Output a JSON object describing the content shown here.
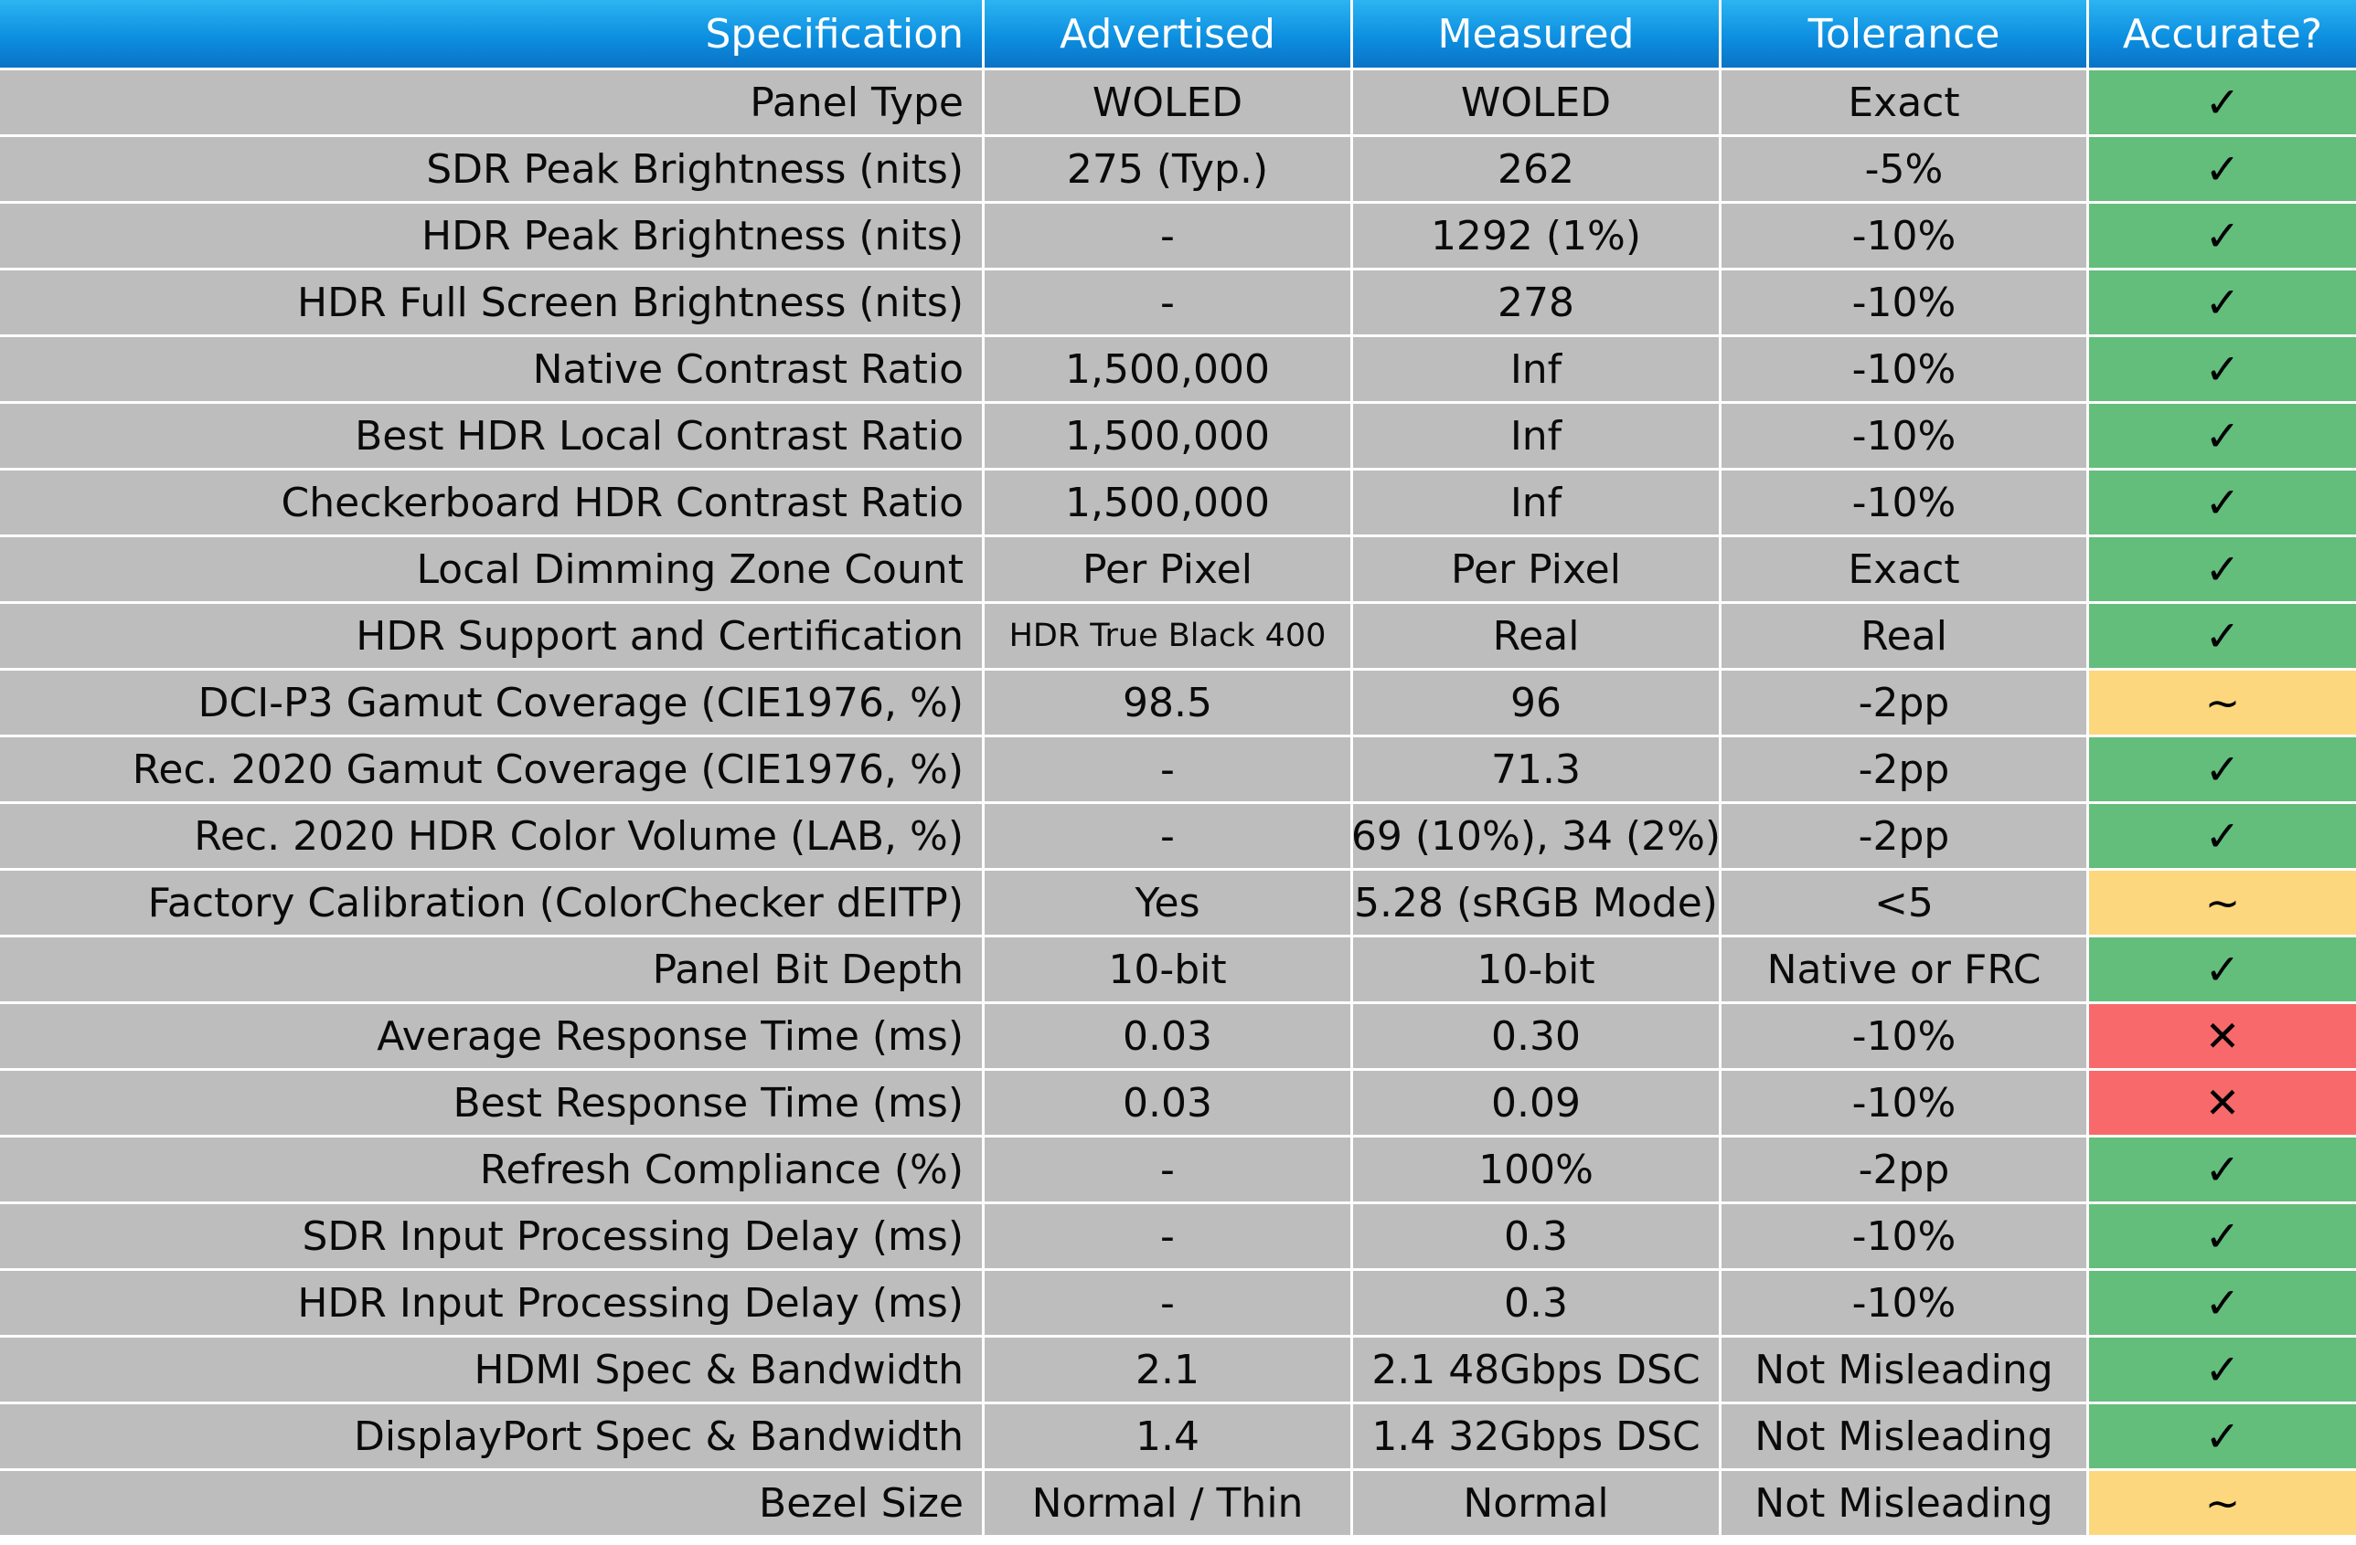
{
  "colors": {
    "header_top": "#2cb4f2",
    "header_bottom": "#0a73c6",
    "cell_bg": "#bdbdbd",
    "accurate_green": "#63bd7b",
    "partial_yellow": "#fdd77e",
    "inaccurate_red": "#f8696b"
  },
  "headers": [
    "Specification",
    "Advertised",
    "Measured",
    "Tolerance",
    "Accurate?"
  ],
  "rows": [
    {
      "spec": "Panel Type",
      "advertised": "WOLED",
      "measured": "WOLED",
      "tolerance": "Exact",
      "accurate": "✓",
      "status": "good"
    },
    {
      "spec": "SDR Peak Brightness (nits)",
      "advertised": "275 (Typ.)",
      "measured": "262",
      "tolerance": "-5%",
      "accurate": "✓",
      "status": "good"
    },
    {
      "spec": "HDR Peak Brightness (nits)",
      "advertised": "-",
      "measured": "1292 (1%)",
      "tolerance": "-10%",
      "accurate": "✓",
      "status": "good"
    },
    {
      "spec": "HDR Full Screen Brightness (nits)",
      "advertised": "-",
      "measured": "278",
      "tolerance": "-10%",
      "accurate": "✓",
      "status": "good"
    },
    {
      "spec": "Native Contrast Ratio",
      "advertised": "1,500,000",
      "measured": "Inf",
      "tolerance": "-10%",
      "accurate": "✓",
      "status": "good"
    },
    {
      "spec": "Best HDR Local Contrast Ratio",
      "advertised": "1,500,000",
      "measured": "Inf",
      "tolerance": "-10%",
      "accurate": "✓",
      "status": "good"
    },
    {
      "spec": "Checkerboard HDR Contrast Ratio",
      "advertised": "1,500,000",
      "measured": "Inf",
      "tolerance": "-10%",
      "accurate": "✓",
      "status": "good"
    },
    {
      "spec": "Local Dimming Zone Count",
      "advertised": "Per Pixel",
      "measured": "Per Pixel",
      "tolerance": "Exact",
      "accurate": "✓",
      "status": "good"
    },
    {
      "spec": "HDR Support and Certification",
      "advertised": "HDR True Black 400",
      "measured": "Real",
      "tolerance": "Real",
      "accurate": "✓",
      "status": "good",
      "small_advertised": true
    },
    {
      "spec": "DCI-P3 Gamut Coverage (CIE1976, %)",
      "advertised": "98.5",
      "measured": "96",
      "tolerance": "-2pp",
      "accurate": "~",
      "status": "partial"
    },
    {
      "spec": "Rec. 2020 Gamut Coverage (CIE1976, %)",
      "advertised": "-",
      "measured": "71.3",
      "tolerance": "-2pp",
      "accurate": "✓",
      "status": "good"
    },
    {
      "spec": "Rec. 2020 HDR Color Volume (LAB, %)",
      "advertised": "-",
      "measured": "69 (10%), 34 (2%)",
      "tolerance": "-2pp",
      "accurate": "✓",
      "status": "good"
    },
    {
      "spec": "Factory Calibration (ColorChecker dEITP)",
      "advertised": "Yes",
      "measured": "5.28 (sRGB Mode)",
      "tolerance": "<5",
      "accurate": "~",
      "status": "partial"
    },
    {
      "spec": "Panel Bit Depth",
      "advertised": "10-bit",
      "measured": "10-bit",
      "tolerance": "Native or FRC",
      "accurate": "✓",
      "status": "good"
    },
    {
      "spec": "Average Response Time (ms)",
      "advertised": "0.03",
      "measured": "0.30",
      "tolerance": "-10%",
      "accurate": "✕",
      "status": "bad"
    },
    {
      "spec": "Best Response Time (ms)",
      "advertised": "0.03",
      "measured": "0.09",
      "tolerance": "-10%",
      "accurate": "✕",
      "status": "bad"
    },
    {
      "spec": "Refresh Compliance (%)",
      "advertised": "-",
      "measured": "100%",
      "tolerance": "-2pp",
      "accurate": "✓",
      "status": "good"
    },
    {
      "spec": "SDR Input Processing Delay (ms)",
      "advertised": "-",
      "measured": "0.3",
      "tolerance": "-10%",
      "accurate": "✓",
      "status": "good"
    },
    {
      "spec": "HDR Input Processing Delay (ms)",
      "advertised": "-",
      "measured": "0.3",
      "tolerance": "-10%",
      "accurate": "✓",
      "status": "good"
    },
    {
      "spec": "HDMI Spec & Bandwidth",
      "advertised": "2.1",
      "measured": "2.1 48Gbps DSC",
      "tolerance": "Not Misleading",
      "accurate": "✓",
      "status": "good"
    },
    {
      "spec": "DisplayPort Spec & Bandwidth",
      "advertised": "1.4",
      "measured": "1.4 32Gbps DSC",
      "tolerance": "Not Misleading",
      "accurate": "✓",
      "status": "good"
    },
    {
      "spec": "Bezel Size",
      "advertised": "Normal / Thin",
      "measured": "Normal",
      "tolerance": "Not Misleading",
      "accurate": "~",
      "status": "partial"
    }
  ]
}
